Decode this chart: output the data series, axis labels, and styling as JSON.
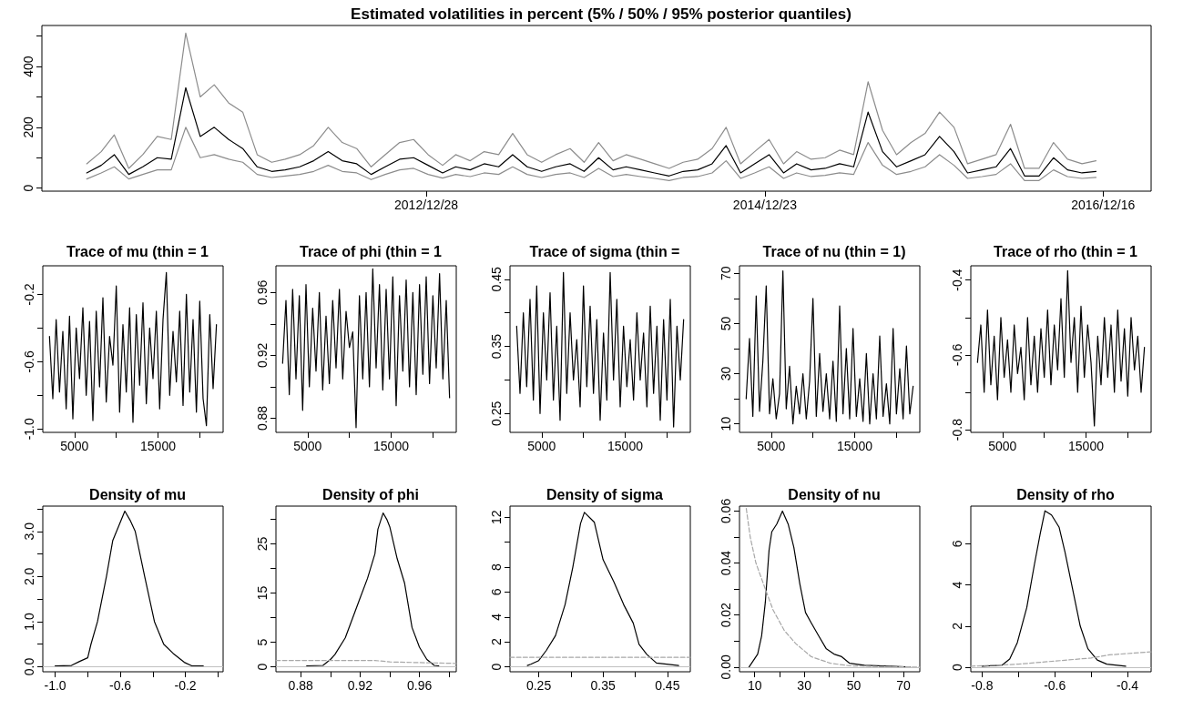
{
  "chart_data": [
    {
      "type": "line",
      "title": "Estimated volatilities in percent (5% / 50% / 95% posterior quantiles)",
      "marker": "none",
      "x": [
        "2011-01",
        "2011-02",
        "2011-03",
        "2011-04",
        "2011-05",
        "2011-06",
        "2011-07",
        "2011-08",
        "2011-09",
        "2011-10",
        "2011-11",
        "2011-12",
        "2012-01",
        "2012-02",
        "2012-03",
        "2012-04",
        "2012-05",
        "2012-06",
        "2012-07",
        "2012-08",
        "2012-09",
        "2012-10",
        "2012-11",
        "2012-12",
        "2013-01",
        "2013-02",
        "2013-03",
        "2013-04",
        "2013-05",
        "2013-06",
        "2013-07",
        "2013-08",
        "2013-09",
        "2013-10",
        "2013-11",
        "2013-12",
        "2014-01",
        "2014-02",
        "2014-03",
        "2014-04",
        "2014-05",
        "2014-06",
        "2014-07",
        "2014-08",
        "2014-09",
        "2014-10",
        "2014-11",
        "2014-12",
        "2015-01",
        "2015-02",
        "2015-03",
        "2015-04",
        "2015-05",
        "2015-06",
        "2015-07",
        "2015-08",
        "2015-09",
        "2015-10",
        "2015-11",
        "2015-12",
        "2016-01",
        "2016-02",
        "2016-03",
        "2016-04",
        "2016-05",
        "2016-06",
        "2016-07",
        "2016-08",
        "2016-09",
        "2016-10",
        "2016-11",
        "2016-12"
      ],
      "series": [
        {
          "color": "#8c8c8c",
          "values": [
            30,
            50,
            70,
            30,
            45,
            60,
            60,
            200,
            100,
            110,
            95,
            85,
            45,
            35,
            40,
            45,
            55,
            75,
            55,
            50,
            28,
            45,
            60,
            65,
            45,
            33,
            45,
            38,
            50,
            45,
            70,
            45,
            35,
            45,
            50,
            35,
            65,
            38,
            45,
            38,
            32,
            25,
            35,
            38,
            50,
            90,
            32,
            50,
            70,
            32,
            50,
            38,
            42,
            50,
            45,
            150,
            75,
            45,
            55,
            70,
            110,
            75,
            32,
            38,
            45,
            80,
            25,
            25,
            60,
            38,
            32,
            35
          ]
        },
        {
          "color": "#8c8c8c",
          "values": [
            80,
            120,
            175,
            65,
            110,
            170,
            160,
            510,
            300,
            340,
            280,
            250,
            110,
            85,
            95,
            110,
            140,
            200,
            150,
            130,
            70,
            110,
            150,
            160,
            110,
            75,
            110,
            90,
            120,
            110,
            180,
            110,
            85,
            110,
            130,
            85,
            150,
            90,
            110,
            95,
            80,
            65,
            85,
            95,
            130,
            200,
            80,
            120,
            160,
            80,
            120,
            95,
            100,
            125,
            110,
            350,
            190,
            110,
            150,
            180,
            250,
            200,
            80,
            95,
            110,
            210,
            65,
            65,
            150,
            95,
            80,
            90
          ]
        },
        {
          "color": "#000000",
          "values": [
            50,
            75,
            110,
            45,
            70,
            100,
            95,
            330,
            170,
            200,
            160,
            130,
            70,
            55,
            60,
            70,
            90,
            120,
            90,
            80,
            45,
            70,
            95,
            100,
            75,
            50,
            70,
            60,
            80,
            70,
            110,
            70,
            55,
            70,
            80,
            55,
            100,
            60,
            70,
            60,
            50,
            40,
            55,
            60,
            80,
            140,
            50,
            80,
            110,
            50,
            80,
            60,
            65,
            80,
            70,
            250,
            120,
            70,
            90,
            110,
            170,
            120,
            50,
            60,
            70,
            130,
            40,
            40,
            100,
            60,
            50,
            55
          ]
        }
      ],
      "xlim": [
        "2010-09-27",
        "2017-03-29"
      ],
      "xticks": [
        {
          "value": "2012-12-28",
          "label": "2012/12/28"
        },
        {
          "value": "2014-12-23",
          "label": "2014/12/23"
        },
        {
          "value": "2016-12-16",
          "label": "2016/12/16"
        }
      ],
      "ylim": [
        -10,
        535
      ],
      "yticks": [
        0,
        {
          "value": 100,
          "label": null
        },
        200,
        {
          "value": 300,
          "label": null
        },
        400,
        {
          "value": 500,
          "label": null
        }
      ]
    },
    {
      "type": "line",
      "title": "Trace of mu (thin = 1",
      "marker": "none",
      "x": [
        2000,
        2400,
        2800,
        3200,
        3600,
        4000,
        4400,
        4800,
        5200,
        5600,
        6000,
        6400,
        6800,
        7200,
        7600,
        8000,
        8400,
        8800,
        9200,
        9600,
        10000,
        10400,
        10800,
        11200,
        11600,
        12000,
        12400,
        12800,
        13200,
        13600,
        14000,
        14400,
        14800,
        15200,
        15600,
        16000,
        16400,
        16800,
        17200,
        17600,
        18000,
        18400,
        18800,
        19200,
        19600,
        20000,
        20400,
        20800,
        21200,
        21600,
        22000
      ],
      "series": [
        {
          "color": "#000000",
          "values": [
            -0.45,
            -0.82,
            -0.35,
            -0.78,
            -0.42,
            -0.88,
            -0.33,
            -0.94,
            -0.4,
            -0.7,
            -0.28,
            -0.8,
            -0.36,
            -0.95,
            -0.3,
            -0.75,
            -0.22,
            -0.84,
            -0.45,
            -0.62,
            -0.15,
            -0.9,
            -0.38,
            -0.78,
            -0.28,
            -0.96,
            -0.32,
            -0.74,
            -0.25,
            -0.85,
            -0.4,
            -0.7,
            -0.3,
            -0.88,
            -0.35,
            -0.07,
            -0.8,
            -0.42,
            -0.72,
            -0.3,
            -0.86,
            -0.2,
            -0.78,
            -0.35,
            -0.9,
            -0.24,
            -0.82,
            -0.98,
            -0.32,
            -0.76,
            -0.38
          ]
        }
      ],
      "xlim": [
        1200,
        22800
      ],
      "xticks": [
        5000,
        {
          "value": 10000,
          "label": null
        },
        15000,
        {
          "value": 20000,
          "label": null
        }
      ],
      "ylim": [
        -1.02,
        -0.03
      ],
      "yticks": [
        {
          "value": -1,
          "label": "-1.0"
        },
        {
          "value": -0.8,
          "label": null
        },
        -0.6,
        {
          "value": -0.4,
          "label": null
        },
        -0.2
      ]
    },
    {
      "type": "line",
      "title": "Trace of phi (thin = 1",
      "marker": "none",
      "x": [
        2000,
        2400,
        2800,
        3200,
        3600,
        4000,
        4400,
        4800,
        5200,
        5600,
        6000,
        6400,
        6800,
        7200,
        7600,
        8000,
        8400,
        8800,
        9200,
        9600,
        10000,
        10400,
        10800,
        11200,
        11600,
        12000,
        12400,
        12800,
        13200,
        13600,
        14000,
        14400,
        14800,
        15200,
        15600,
        16000,
        16400,
        16800,
        17200,
        17600,
        18000,
        18400,
        18800,
        19200,
        19600,
        20000,
        20400,
        20800,
        21200,
        21600,
        22000
      ],
      "series": [
        {
          "color": "#000000",
          "values": [
            0.915,
            0.955,
            0.895,
            0.962,
            0.905,
            0.958,
            0.885,
            0.965,
            0.9,
            0.95,
            0.91,
            0.96,
            0.898,
            0.945,
            0.902,
            0.955,
            0.912,
            0.962,
            0.905,
            0.948,
            0.925,
            0.935,
            0.874,
            0.958,
            0.905,
            0.96,
            0.9,
            0.975,
            0.912,
            0.965,
            0.898,
            0.962,
            0.905,
            0.97,
            0.888,
            0.958,
            0.91,
            0.968,
            0.9,
            0.96,
            0.895,
            0.965,
            0.908,
            0.97,
            0.902,
            0.958,
            0.912,
            0.972,
            0.905,
            0.955,
            0.893
          ]
        }
      ],
      "xlim": [
        1200,
        22800
      ],
      "xticks": [
        5000,
        {
          "value": 10000,
          "label": null
        },
        15000,
        {
          "value": 20000,
          "label": null
        }
      ],
      "ylim": [
        0.871,
        0.977
      ],
      "yticks": [
        0.88,
        {
          "value": 0.9,
          "label": null
        },
        0.92,
        {
          "value": 0.94,
          "label": null
        },
        0.96
      ]
    },
    {
      "type": "line",
      "title": "Trace of sigma (thin =",
      "marker": "none",
      "x": [
        2000,
        2400,
        2800,
        3200,
        3600,
        4000,
        4400,
        4800,
        5200,
        5600,
        6000,
        6400,
        6800,
        7200,
        7600,
        8000,
        8400,
        8800,
        9200,
        9600,
        10000,
        10400,
        10800,
        11200,
        11600,
        12000,
        12400,
        12800,
        13200,
        13600,
        14000,
        14400,
        14800,
        15200,
        15600,
        16000,
        16400,
        16800,
        17200,
        17600,
        18000,
        18400,
        18800,
        19200,
        19600,
        20000,
        20400,
        20800,
        21200,
        21600,
        22000
      ],
      "series": [
        {
          "color": "#000000",
          "values": [
            0.38,
            0.28,
            0.4,
            0.29,
            0.42,
            0.27,
            0.44,
            0.25,
            0.4,
            0.3,
            0.43,
            0.27,
            0.38,
            0.24,
            0.46,
            0.28,
            0.4,
            0.3,
            0.36,
            0.26,
            0.44,
            0.29,
            0.41,
            0.28,
            0.39,
            0.24,
            0.37,
            0.27,
            0.46,
            0.3,
            0.42,
            0.26,
            0.38,
            0.29,
            0.36,
            0.27,
            0.4,
            0.3,
            0.37,
            0.26,
            0.41,
            0.28,
            0.38,
            0.24,
            0.39,
            0.27,
            0.42,
            0.23,
            0.38,
            0.3,
            0.39
          ]
        }
      ],
      "xlim": [
        1200,
        22800
      ],
      "xticks": [
        5000,
        {
          "value": 10000,
          "label": null
        },
        15000,
        {
          "value": 20000,
          "label": null
        }
      ],
      "ylim": [
        0.222,
        0.47
      ],
      "yticks": [
        0.25,
        {
          "value": 0.3,
          "label": null
        },
        0.35,
        {
          "value": 0.4,
          "label": null
        },
        0.45
      ]
    },
    {
      "type": "line",
      "title": "Trace of nu (thin = 1)",
      "marker": "none",
      "x": [
        2000,
        2400,
        2800,
        3200,
        3600,
        4000,
        4400,
        4800,
        5200,
        5600,
        6000,
        6400,
        6800,
        7200,
        7600,
        8000,
        8400,
        8800,
        9200,
        9600,
        10000,
        10400,
        10800,
        11200,
        11600,
        12000,
        12400,
        12800,
        13200,
        13600,
        14000,
        14400,
        14800,
        15200,
        15600,
        16000,
        16400,
        16800,
        17200,
        17600,
        18000,
        18400,
        18800,
        19200,
        19600,
        20000,
        20400,
        20800,
        21200,
        21600,
        22000
      ],
      "series": [
        {
          "color": "#000000",
          "values": [
            20,
            44,
            13,
            61,
            15,
            35,
            65,
            14,
            28,
            12,
            22,
            71,
            16,
            33,
            10,
            25,
            14,
            30,
            12,
            27,
            60,
            13,
            38,
            15,
            30,
            12,
            35,
            11,
            57,
            14,
            40,
            12,
            48,
            13,
            28,
            11,
            38,
            10,
            30,
            12,
            45,
            13,
            26,
            10,
            48,
            14,
            32,
            12,
            41,
            14,
            25
          ]
        }
      ],
      "xlim": [
        1200,
        22800
      ],
      "xticks": [
        5000,
        {
          "value": 10000,
          "label": null
        },
        15000,
        {
          "value": 20000,
          "label": null
        }
      ],
      "ylim": [
        6.6,
        73
      ],
      "yticks": [
        10,
        {
          "value": 20,
          "label": null
        },
        30,
        {
          "value": 40,
          "label": null
        },
        50,
        {
          "value": 60,
          "label": null
        },
        70
      ]
    },
    {
      "type": "line",
      "title": "Trace of rho (thin = 1",
      "marker": "none",
      "x": [
        2000,
        2400,
        2800,
        3200,
        3600,
        4000,
        4400,
        4800,
        5200,
        5600,
        6000,
        6400,
        6800,
        7200,
        7600,
        8000,
        8400,
        8800,
        9200,
        9600,
        10000,
        10400,
        10800,
        11200,
        11600,
        12000,
        12400,
        12800,
        13200,
        13600,
        14000,
        14400,
        14800,
        15200,
        15600,
        16000,
        16400,
        16800,
        17200,
        17600,
        18000,
        18400,
        18800,
        19200,
        19600,
        20000,
        20400,
        20800,
        21200,
        21600,
        22000
      ],
      "series": [
        {
          "color": "#000000",
          "values": [
            -0.62,
            -0.52,
            -0.7,
            -0.48,
            -0.68,
            -0.55,
            -0.72,
            -0.5,
            -0.66,
            -0.56,
            -0.7,
            -0.52,
            -0.65,
            -0.58,
            -0.72,
            -0.5,
            -0.68,
            -0.55,
            -0.7,
            -0.53,
            -0.66,
            -0.48,
            -0.68,
            -0.52,
            -0.64,
            -0.45,
            -0.66,
            -0.375,
            -0.62,
            -0.5,
            -0.7,
            -0.47,
            -0.66,
            -0.52,
            -0.62,
            -0.79,
            -0.55,
            -0.68,
            -0.5,
            -0.66,
            -0.52,
            -0.7,
            -0.48,
            -0.67,
            -0.53,
            -0.71,
            -0.5,
            -0.64,
            -0.55,
            -0.7,
            -0.58
          ]
        }
      ],
      "xlim": [
        1200,
        22800
      ],
      "xticks": [
        5000,
        {
          "value": 10000,
          "label": null
        },
        15000,
        {
          "value": 20000,
          "label": null
        }
      ],
      "ylim": [
        -0.807,
        -0.362
      ],
      "yticks": [
        -0.8,
        {
          "value": -0.7,
          "label": null
        },
        -0.6,
        {
          "value": -0.5,
          "label": null
        },
        -0.4
      ]
    },
    {
      "type": "line",
      "title": "Density of mu",
      "marker": "none",
      "series": [
        {
          "color": "#000000",
          "x": [
            -1.0,
            -0.9,
            -0.85,
            -0.8,
            -0.78,
            -0.74,
            -0.685,
            -0.646,
            -0.6,
            -0.572,
            -0.54,
            -0.508,
            -0.45,
            -0.39,
            -0.333,
            -0.276,
            -0.207,
            -0.16,
            -0.09
          ],
          "values": [
            0.02,
            0.03,
            0.12,
            0.2,
            0.5,
            1.0,
            2.0,
            2.8,
            3.2,
            3.45,
            3.25,
            3.0,
            2.0,
            1.0,
            0.5,
            0.3,
            0.1,
            0.02,
            0.02
          ]
        }
      ],
      "ref_lines": [
        {
          "axis": "y",
          "value": 0,
          "color": "#c0c0c0"
        }
      ],
      "xlim": [
        -1.076,
        0.032
      ],
      "xticks": [
        {
          "value": -1,
          "label": "-1.0"
        },
        {
          "value": -0.8,
          "label": null
        },
        -0.6,
        {
          "value": -0.4,
          "label": null
        },
        -0.2,
        {
          "value": 0,
          "label": null
        }
      ],
      "ylim": [
        -0.11,
        3.56
      ],
      "yticks": [
        {
          "value": 0,
          "label": "0.0"
        },
        {
          "value": 0.5,
          "label": null
        },
        {
          "value": 1,
          "label": "1.0"
        },
        {
          "value": 1.5,
          "label": null
        },
        {
          "value": 2,
          "label": "2.0"
        },
        {
          "value": 2.5,
          "label": null
        },
        {
          "value": 3,
          "label": "3.0"
        },
        {
          "value": 3.5,
          "label": null
        }
      ]
    },
    {
      "type": "line",
      "title": "Density of phi",
      "marker": "none",
      "series": [
        {
          "color": "#000000",
          "x": [
            0.884,
            0.895,
            0.9,
            0.903,
            0.91,
            0.92,
            0.925,
            0.93,
            0.932,
            0.9355,
            0.938,
            0.94,
            0.945,
            0.95,
            0.955,
            0.96,
            0.965,
            0.97,
            0.973
          ],
          "values": [
            0.2,
            0.3,
            1.5,
            2.5,
            5.9,
            14,
            18,
            23,
            28,
            31.3,
            30,
            28.5,
            22,
            17,
            8,
            4,
            1.5,
            0.3,
            0.2
          ]
        },
        {
          "color": "#a8a8a8",
          "line_style": "dashed",
          "x": [
            0.8633,
            0.93,
            0.94,
            0.9848
          ],
          "values": [
            1.3,
            1.3,
            1.0,
            0.7
          ]
        }
      ],
      "ref_lines": [
        {
          "axis": "y",
          "value": 0,
          "color": "#c0c0c0"
        }
      ],
      "xlim": [
        0.8633,
        0.9848
      ],
      "xticks": [
        0.88,
        {
          "value": 0.9,
          "label": null
        },
        0.92,
        {
          "value": 0.94,
          "label": null
        },
        0.96,
        {
          "value": 0.98,
          "label": null
        }
      ],
      "ylim": [
        -1.0,
        32.7
      ],
      "yticks": [
        0,
        5,
        {
          "value": 10,
          "label": null
        },
        15,
        {
          "value": 20,
          "label": null
        },
        25,
        {
          "value": 30,
          "label": null
        }
      ]
    },
    {
      "type": "line",
      "title": "Density of sigma",
      "marker": "none",
      "series": [
        {
          "color": "#000000",
          "x": [
            0.2323,
            0.2376,
            0.25,
            0.2616,
            0.276,
            0.291,
            0.303,
            0.315,
            0.321,
            0.3365,
            0.35,
            0.367,
            0.382,
            0.397,
            0.406,
            0.418,
            0.433,
            0.4675
          ],
          "values": [
            0.1,
            0.2,
            0.5,
            1.3,
            2.5,
            5,
            8,
            11.5,
            12.4,
            11.6,
            8.6,
            6.8,
            5.0,
            3.5,
            1.8,
            1.0,
            0.3,
            0.1
          ]
        },
        {
          "color": "#a8a8a8",
          "line_style": "dashed",
          "x": [
            0.2053,
            0.4857
          ],
          "values": [
            0.76,
            0.76
          ]
        }
      ],
      "ref_lines": [
        {
          "axis": "y",
          "value": 0,
          "color": "#c0c0c0"
        }
      ],
      "xlim": [
        0.2053,
        0.4857
      ],
      "xticks": [
        0.25,
        {
          "value": 0.3,
          "label": null
        },
        0.35,
        {
          "value": 0.4,
          "label": null
        },
        0.45
      ],
      "ylim": [
        -0.4,
        12.9
      ],
      "yticks": [
        0,
        2,
        4,
        6,
        8,
        {
          "value": 10,
          "label": null
        },
        12
      ]
    },
    {
      "type": "line",
      "title": "Density of nu",
      "marker": "none",
      "series": [
        {
          "color": "#000000",
          "x": [
            7.7,
            11.2,
            12.8,
            14.3,
            15.8,
            16.9,
            18.9,
            21.2,
            23.5,
            25.8,
            28.2,
            30.5,
            32.8,
            35.8,
            38.9,
            42,
            45.1,
            48.2,
            54.3,
            66.6,
            72.8
          ],
          "values": [
            0,
            0.005,
            0.012,
            0.025,
            0.045,
            0.052,
            0.055,
            0.06,
            0.055,
            0.046,
            0.032,
            0.021,
            0.017,
            0.012,
            0.007,
            0.005,
            0.004,
            0.0015,
            0.0007,
            0.0003,
            0
          ]
        },
        {
          "color": "#a8a8a8",
          "line_style": "dashed",
          "x": [
            6.6,
            8.2,
            10.5,
            14.3,
            17.4,
            22,
            26.6,
            32.8,
            40.5,
            48.2,
            60,
            76.6
          ],
          "values": [
            0.061,
            0.05,
            0.04,
            0.03,
            0.022,
            0.014,
            0.009,
            0.004,
            0.0015,
            0.0005,
            0.0002,
            0
          ]
        }
      ],
      "ref_lines": [
        {
          "axis": "y",
          "value": 0,
          "color": "#c0c0c0"
        }
      ],
      "xlim": [
        3.87,
        76.6
      ],
      "xticks": [
        10,
        {
          "value": 20,
          "label": null
        },
        30,
        {
          "value": 40,
          "label": null
        },
        50,
        {
          "value": 60,
          "label": null
        },
        70
      ],
      "ylim": [
        -0.0018,
        0.0619
      ],
      "yticks": [
        {
          "value": 0,
          "label": "0.00"
        },
        {
          "value": 0.01,
          "label": null
        },
        {
          "value": 0.02,
          "label": "0.02"
        },
        {
          "value": 0.03,
          "label": null
        },
        {
          "value": 0.04,
          "label": "0.04"
        },
        {
          "value": 0.05,
          "label": null
        },
        {
          "value": 0.06,
          "label": "0.06"
        }
      ]
    },
    {
      "type": "line",
      "title": "Density of rho",
      "marker": "none",
      "series": [
        {
          "color": "#000000",
          "x": [
            -0.8,
            -0.745,
            -0.724,
            -0.703,
            -0.677,
            -0.656,
            -0.64,
            -0.627,
            -0.609,
            -0.588,
            -0.572,
            -0.551,
            -0.53,
            -0.509,
            -0.483,
            -0.457,
            -0.405
          ],
          "values": [
            0.05,
            0.1,
            0.4,
            1.2,
            2.9,
            5.0,
            6.5,
            7.6,
            7.4,
            6.8,
            5.6,
            3.8,
            2.0,
            0.9,
            0.35,
            0.15,
            0.05
          ]
        },
        {
          "color": "#a8a8a8",
          "line_style": "dashed",
          "x": [
            -0.831,
            -0.7,
            -0.6,
            -0.5,
            -0.45,
            -0.335
          ],
          "values": [
            0.05,
            0.15,
            0.3,
            0.45,
            0.6,
            0.75
          ]
        }
      ],
      "ref_lines": [
        {
          "axis": "y",
          "value": 0,
          "color": "#c0c0c0"
        }
      ],
      "xlim": [
        -0.831,
        -0.335
      ],
      "xticks": [
        -0.8,
        {
          "value": -0.7,
          "label": null
        },
        -0.6,
        {
          "value": -0.5,
          "label": null
        },
        -0.4
      ],
      "ylim": [
        -0.22,
        7.83
      ],
      "yticks": [
        0,
        2,
        4,
        6
      ]
    }
  ]
}
